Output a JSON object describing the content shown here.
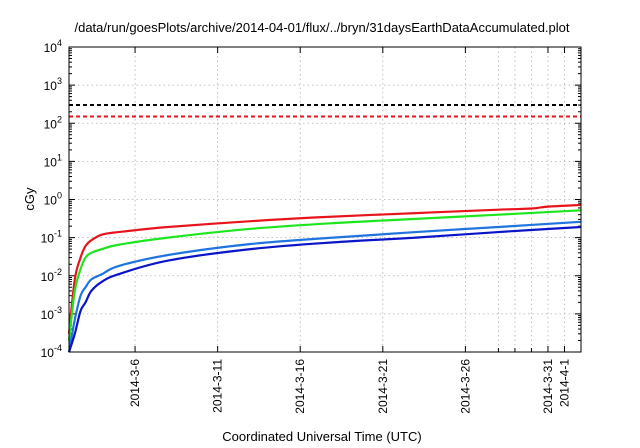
{
  "chart_data": {
    "type": "line",
    "title": "/data/run/goesPlots/archive/2014-04-01/flux/../bryn/31daysEarthDataAccumulated.plot",
    "xlabel": "Coordinated Universal Time (UTC)",
    "ylabel": "cGy",
    "y_scale": "log",
    "ylim": [
      0.0001,
      10000
    ],
    "y_ticks": [
      {
        "value": 0.0001,
        "base": "10",
        "exp": "-4"
      },
      {
        "value": 0.001,
        "base": "10",
        "exp": "-3"
      },
      {
        "value": 0.01,
        "base": "10",
        "exp": "-2"
      },
      {
        "value": 0.1,
        "base": "10",
        "exp": "-1"
      },
      {
        "value": 1,
        "base": "10",
        "exp": "0"
      },
      {
        "value": 10,
        "base": "10",
        "exp": "1"
      },
      {
        "value": 100,
        "base": "10",
        "exp": "2"
      },
      {
        "value": 1000,
        "base": "10",
        "exp": "3"
      },
      {
        "value": 10000,
        "base": "10",
        "exp": "4"
      }
    ],
    "xlim": [
      "2014-03-02",
      "2014-04-02"
    ],
    "x_ticks": [
      {
        "date": "2014-03-06",
        "label": "2014-3-6"
      },
      {
        "date": "2014-03-11",
        "label": "2014-3-11"
      },
      {
        "date": "2014-03-16",
        "label": "2014-3-16"
      },
      {
        "date": "2014-03-21",
        "label": "2014-3-21"
      },
      {
        "date": "2014-03-26",
        "label": "2014-3-26"
      },
      {
        "date": "2014-03-31",
        "label": "2014-3-31"
      },
      {
        "date": "2014-04-01",
        "label": "2014-4-1"
      }
    ],
    "extra_x_gridlines": [
      "2014-03-28",
      "2014-03-29",
      "2014-03-30"
    ],
    "grid": true,
    "reference_lines": [
      {
        "color": "#000000",
        "value": 300
      },
      {
        "color": "#e8141c",
        "value": 150
      }
    ],
    "series": [
      {
        "color": "#e8141c",
        "x": [
          "2014-03-02",
          "2014-03-02",
          "2014-03-02",
          "2014-03-03",
          "2014-03-03",
          "2014-03-04",
          "2014-03-05",
          "2014-03-08",
          "2014-03-13",
          "2014-03-17",
          "2014-03-23",
          "2014-03-28",
          "2014-03-30",
          "2014-03-31",
          "2014-04-02"
        ],
        "y": [
          0.0003,
          0.008,
          0.03,
          0.06,
          0.085,
          0.12,
          0.14,
          0.19,
          0.27,
          0.34,
          0.44,
          0.54,
          0.58,
          0.65,
          0.72
        ]
      },
      {
        "color": "#1ee61e",
        "x": [
          "2014-03-02",
          "2014-03-02",
          "2014-03-02",
          "2014-03-03",
          "2014-03-03",
          "2014-03-04",
          "2014-03-05",
          "2014-03-08",
          "2014-03-13",
          "2014-03-18",
          "2014-03-23",
          "2014-03-28",
          "2014-04-02"
        ],
        "y": [
          0.0002,
          0.004,
          0.015,
          0.03,
          0.04,
          0.05,
          0.065,
          0.1,
          0.17,
          0.24,
          0.31,
          0.4,
          0.52
        ]
      },
      {
        "color": "#1f74e0",
        "x": [
          "2014-03-02",
          "2014-03-02",
          "2014-03-02",
          "2014-03-03",
          "2014-03-03",
          "2014-03-04",
          "2014-03-05",
          "2014-03-08",
          "2014-03-13",
          "2014-03-18",
          "2014-03-23",
          "2014-03-28",
          "2014-04-02"
        ],
        "y": [
          0.0001,
          0.0007,
          0.003,
          0.005,
          0.008,
          0.011,
          0.018,
          0.035,
          0.068,
          0.1,
          0.14,
          0.19,
          0.26
        ]
      },
      {
        "color": "#0a14c8",
        "x": [
          "2014-03-02",
          "2014-03-02",
          "2014-03-02",
          "2014-03-03",
          "2014-03-03",
          "2014-03-04",
          "2014-03-05",
          "2014-03-08",
          "2014-03-13",
          "2014-03-18",
          "2014-03-23",
          "2014-03-28",
          "2014-04-02"
        ],
        "y": [
          5e-05,
          0.0003,
          0.0012,
          0.002,
          0.004,
          0.007,
          0.011,
          0.025,
          0.05,
          0.075,
          0.1,
          0.14,
          0.19
        ]
      }
    ]
  }
}
